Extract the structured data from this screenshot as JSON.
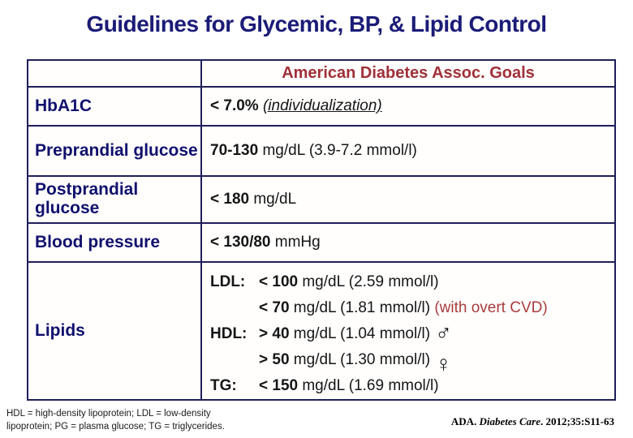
{
  "title": "Guidelines for Glycemic, BP, & Lipid Control",
  "table": {
    "header": "American Diabetes Assoc. Goals",
    "rows": [
      {
        "label": "HbA1C",
        "value_bold": "< 7.0%",
        "value_note": "(individualization)"
      },
      {
        "label": "Preprandial glucose",
        "value_bold": "70-130",
        "value_rest": "mg/dL (3.9-7.2 mmol/l)"
      },
      {
        "label": "Postprandial glucose",
        "value_bold": "< 180",
        "value_rest": "mg/dL"
      },
      {
        "label": "Blood pressure",
        "value_bold": "< 130/80",
        "value_rest": "mmHg"
      }
    ],
    "lipids": {
      "label": "Lipids",
      "lines": [
        {
          "key": "LDL:",
          "bold": "< 100",
          "rest": "mg/dL (2.59 mmol/l)",
          "note": "",
          "symbol": ""
        },
        {
          "key": "",
          "bold": "< 70",
          "rest": "mg/dL (1.81 mmol/l)",
          "note": "(with overt CVD)",
          "symbol": ""
        },
        {
          "key": "HDL:",
          "bold": "> 40",
          "rest": "mg/dL (1.04 mmol/l)",
          "note": "",
          "symbol": "♂"
        },
        {
          "key": "",
          "bold": "> 50",
          "rest": "mg/dL (1.30 mmol/l)",
          "note": "",
          "symbol": "♀"
        },
        {
          "key": "TG:",
          "bold": "< 150",
          "rest": "mg/dL (1.69 mmol/l)",
          "note": "",
          "symbol": ""
        }
      ]
    }
  },
  "footer": {
    "abbr_line1": "HDL = high-density lipoprotein; LDL = low-density",
    "abbr_line2": "lipoprotein; PG = plasma glucose; TG = triglycerides.",
    "citation_prefix": "ADA.",
    "citation_italic": "Diabetes Care",
    "citation_suffix": ". 2012;35:S11-63"
  },
  "colors": {
    "title_navy": "#1b1b78",
    "label_navy": "#10106e",
    "border_navy": "#1f1f5a",
    "header_red": "#a03038",
    "note_red": "#a83c3c",
    "body_text": "#151515"
  }
}
